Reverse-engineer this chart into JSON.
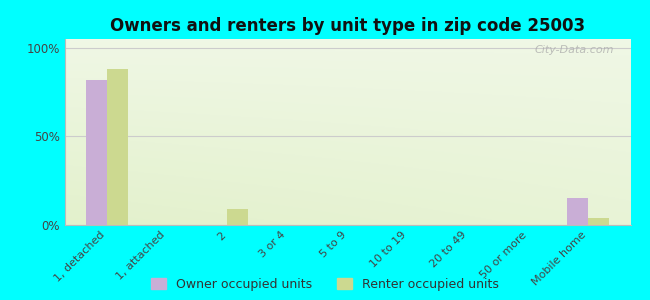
{
  "title": "Owners and renters by unit type in zip code 25003",
  "categories": [
    "1, detached",
    "1, attached",
    "2",
    "3 or 4",
    "5 to 9",
    "10 to 19",
    "20 to 49",
    "50 or more",
    "Mobile home"
  ],
  "owner_values": [
    82,
    0,
    0,
    0,
    0,
    0,
    0,
    0,
    15
  ],
  "renter_values": [
    88,
    0,
    9,
    0,
    0,
    0,
    0,
    0,
    4
  ],
  "owner_color": "#c9aed6",
  "renter_color": "#ccd990",
  "outer_bg": "#00ffff",
  "ylabel_ticks": [
    0,
    50,
    100
  ],
  "ylabel_labels": [
    "0%",
    "50%",
    "100%"
  ],
  "ylim": [
    0,
    105
  ],
  "bar_width": 0.35,
  "legend_owner": "Owner occupied units",
  "legend_renter": "Renter occupied units",
  "watermark": "City-Data.com",
  "grid_color": "#cccccc",
  "bg_left_top": "#d8e8a8",
  "bg_right_bottom": "#f5faee"
}
